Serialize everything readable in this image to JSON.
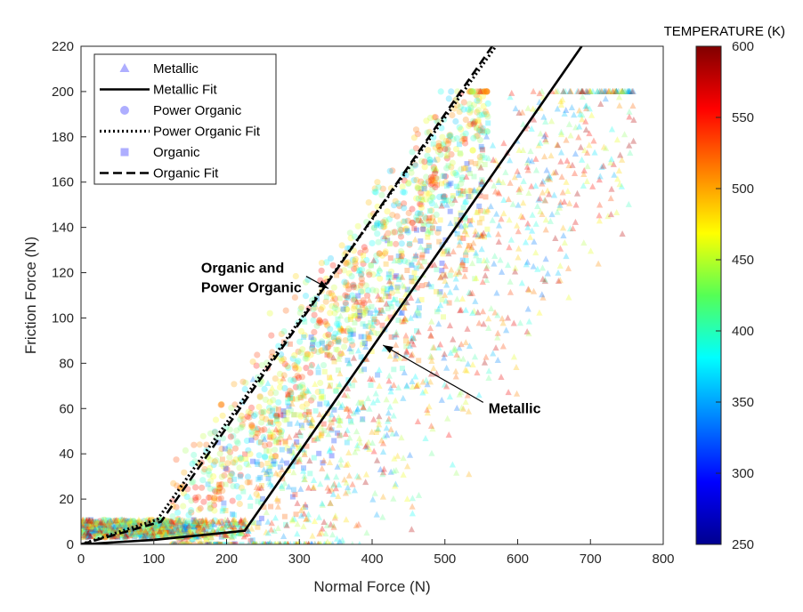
{
  "chart_data": {
    "type": "scatter",
    "title": "",
    "xlabel": "Normal Force (N)",
    "ylabel": "Friction Force (N)",
    "xlim": [
      0,
      800
    ],
    "ylim": [
      0,
      220
    ],
    "xticks": [
      "0",
      "100",
      "200",
      "300",
      "400",
      "500",
      "600",
      "700",
      "800"
    ],
    "yticks": [
      "0",
      "20",
      "40",
      "60",
      "80",
      "100",
      "120",
      "140",
      "160",
      "180",
      "200",
      "220"
    ],
    "grid": false,
    "legend_position": "top-left",
    "legend": [
      {
        "label": "Metallic",
        "kind": "marker",
        "marker": "triangle"
      },
      {
        "label": "Metallic Fit",
        "kind": "line",
        "dash": "solid"
      },
      {
        "label": "Power Organic",
        "kind": "marker",
        "marker": "circle"
      },
      {
        "label": "Power Organic Fit",
        "kind": "line",
        "dash": "dotted"
      },
      {
        "label": "Organic",
        "kind": "marker",
        "marker": "square"
      },
      {
        "label": "Organic Fit",
        "kind": "line",
        "dash": "dashed"
      }
    ],
    "colorbar": {
      "title": "TEMPERATURE (K)",
      "range": [
        250,
        600
      ],
      "ticks": [
        "250",
        "300",
        "350",
        "400",
        "450",
        "500",
        "550",
        "600"
      ],
      "colormap": "jet"
    },
    "fits": [
      {
        "name": "Metallic Fit",
        "dash": "solid",
        "points": [
          [
            0,
            0
          ],
          [
            100,
            2
          ],
          [
            225,
            6
          ],
          [
            688,
            220
          ]
        ]
      },
      {
        "name": "Power Organic Fit",
        "dash": "dotted",
        "points": [
          [
            0,
            0
          ],
          [
            105,
            11
          ],
          [
            570,
            220
          ]
        ]
      },
      {
        "name": "Organic Fit",
        "dash": "dashed",
        "points": [
          [
            0,
            0
          ],
          [
            110,
            10
          ],
          [
            565,
            220
          ]
        ]
      }
    ],
    "scatter_clouds": [
      {
        "name": "Power Organic",
        "marker": "circle",
        "n": 1100,
        "xmin": 0,
        "xmax": 560,
        "slope": 0.5,
        "knee": 125,
        "spread": 45,
        "offset": -15,
        "tempRange": [
          360,
          560
        ]
      },
      {
        "name": "Organic",
        "marker": "square",
        "n": 700,
        "xmin": 0,
        "xmax": 560,
        "slope": 0.48,
        "knee": 170,
        "spread": 55,
        "offset": -55,
        "tempRange": [
          300,
          560
        ]
      },
      {
        "name": "Metallic",
        "marker": "triangle",
        "n": 1500,
        "xmin": 0,
        "xmax": 760,
        "slope": 0.46,
        "knee": 230,
        "spread": 90,
        "offset": -100,
        "tempRange": [
          330,
          590
        ]
      }
    ],
    "annotations": [
      {
        "lines": [
          "Organic and",
          "Power Organic"
        ],
        "text_at": [
          165,
          120
        ],
        "arrow_to": [
          340,
          113
        ]
      },
      {
        "lines": [
          "Metallic"
        ],
        "text_at": [
          560,
          58
        ],
        "arrow_to": [
          415,
          88
        ]
      }
    ]
  }
}
